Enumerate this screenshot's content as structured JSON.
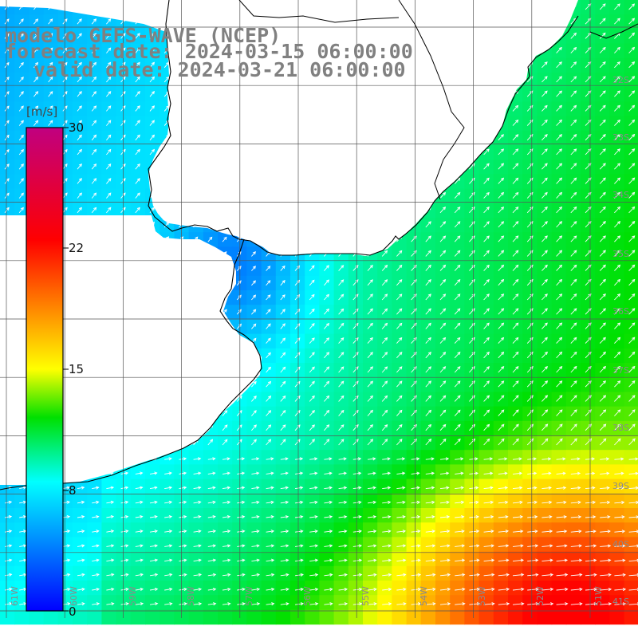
{
  "title": {
    "line1": "modelo GEFS-WAVE (NCEP)",
    "line2": "forecast date: 2024-03-15 06:00:00",
    "line3": "valid date: 2024-03-21 06:00:00"
  },
  "colorbar": {
    "unit": "[m/s]",
    "min": 0,
    "max": 30,
    "ticks": [
      "30",
      "22",
      "15",
      "8",
      "0"
    ],
    "stops": [
      "#0000ff",
      "#0080ff",
      "#00ffff",
      "#00e000",
      "#ffff00",
      "#ff8000",
      "#ff0000",
      "#c00080"
    ]
  },
  "graticule": {
    "lat_labels": [
      "32S",
      "33S",
      "34S",
      "35S",
      "36S",
      "37S",
      "38S",
      "39S",
      "40S",
      "41S"
    ],
    "lon_labels": [
      "61W",
      "60W",
      "59W",
      "58W",
      "57W",
      "56W",
      "55W",
      "54W",
      "53W",
      "52W",
      "51W"
    ]
  },
  "colors": {
    "land": "#ffffff",
    "grid": "#444444",
    "coast": "#000000",
    "arrow": "#ffffff",
    "label": "#808080"
  }
}
